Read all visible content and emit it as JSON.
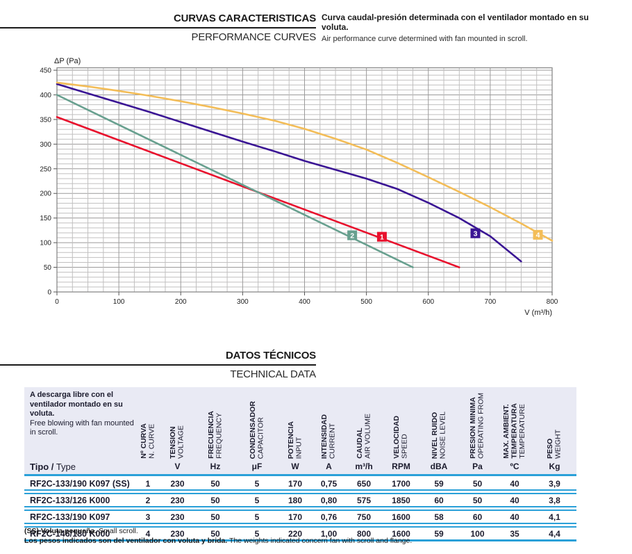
{
  "section1": {
    "title_es": "CURVAS CARACTERISTICAS",
    "title_en": "PERFORMANCE CURVES",
    "desc_es": "Curva caudal-presión determinada con el ventilador montado en su voluta.",
    "desc_en": "Air performance curve determined with fan mounted in scroll."
  },
  "section2": {
    "title_es": "DATOS TÉCNICOS",
    "title_en": "TECHNICAL DATA"
  },
  "chart_data": {
    "type": "line",
    "title": "",
    "xlabel": "V (m³/h)",
    "ylabel": "ΔP (Pa)",
    "xlim": [
      0,
      800
    ],
    "ylim": [
      0,
      455
    ],
    "x_major_step": 100,
    "x_minor_step": 25,
    "y_major_step": 50,
    "y_minor_step": 10,
    "grid": "on",
    "legend": "numbered square markers on curves",
    "series": [
      {
        "name": "1",
        "color": "#e8112d",
        "points": [
          [
            0,
            355
          ],
          [
            650,
            50
          ]
        ],
        "marker": {
          "x": 525,
          "y": 112,
          "label": "1"
        }
      },
      {
        "name": "2",
        "color": "#68a08f",
        "points": [
          [
            0,
            400
          ],
          [
            575,
            50
          ]
        ],
        "marker": {
          "x": 477,
          "y": 115,
          "label": "2"
        }
      },
      {
        "name": "3",
        "color": "#3a1594",
        "points": [
          [
            0,
            422
          ],
          [
            50,
            403
          ],
          [
            100,
            384
          ],
          [
            150,
            365
          ],
          [
            200,
            345
          ],
          [
            250,
            325
          ],
          [
            300,
            305
          ],
          [
            350,
            286
          ],
          [
            400,
            266
          ],
          [
            450,
            248
          ],
          [
            500,
            230
          ],
          [
            550,
            209
          ],
          [
            600,
            181
          ],
          [
            650,
            150
          ],
          [
            700,
            113
          ],
          [
            750,
            62
          ]
        ],
        "marker": {
          "x": 676,
          "y": 119,
          "label": "3"
        }
      },
      {
        "name": "4",
        "color": "#f3bd58",
        "points": [
          [
            0,
            425
          ],
          [
            50,
            417
          ],
          [
            100,
            408
          ],
          [
            150,
            398
          ],
          [
            200,
            387
          ],
          [
            250,
            375
          ],
          [
            300,
            362
          ],
          [
            350,
            348
          ],
          [
            400,
            331
          ],
          [
            450,
            311
          ],
          [
            500,
            289
          ],
          [
            550,
            262
          ],
          [
            600,
            233
          ],
          [
            650,
            203
          ],
          [
            700,
            172
          ],
          [
            750,
            139
          ],
          [
            800,
            104
          ]
        ],
        "marker": {
          "x": 777,
          "y": 116,
          "label": "4"
        }
      }
    ],
    "y_ticks": [
      0,
      50,
      100,
      150,
      200,
      250,
      300,
      350,
      400,
      450
    ],
    "x_ticks": [
      0,
      100,
      200,
      300,
      400,
      500,
      600,
      700,
      800
    ]
  },
  "table": {
    "intro_es": "A descarga libre con el ventilador montado en su voluta.",
    "intro_en": "Free blowing with fan mounted in scroll.",
    "type_label_bold": "Tipo /",
    "type_label_reg": " Type",
    "columns": [
      {
        "lines": [
          {
            "t": "Nº CURVA",
            "bold": true
          },
          {
            "t": "N. CURVE",
            "bold": false
          }
        ],
        "unit": ""
      },
      {
        "lines": [
          {
            "t": "TENSION",
            "bold": true
          },
          {
            "t": "VOLTAGE",
            "bold": false
          }
        ],
        "unit": "V"
      },
      {
        "lines": [
          {
            "t": "FRECUENCIA",
            "bold": true
          },
          {
            "t": "FREQUENCY",
            "bold": false
          }
        ],
        "unit": "Hz"
      },
      {
        "lines": [
          {
            "t": "CONDENSADOR",
            "bold": true
          },
          {
            "t": "CAPACITOR",
            "bold": false
          }
        ],
        "unit": "μF"
      },
      {
        "lines": [
          {
            "t": "POTENCIA",
            "bold": true
          },
          {
            "t": "INPUT",
            "bold": false
          }
        ],
        "unit": "W"
      },
      {
        "lines": [
          {
            "t": "INTENSIDAD",
            "bold": true
          },
          {
            "t": "CURRENT",
            "bold": false
          }
        ],
        "unit": "A"
      },
      {
        "lines": [
          {
            "t": "CAUDAL",
            "bold": true
          },
          {
            "t": "AIR VOLUME",
            "bold": false
          }
        ],
        "unit": "m³/h"
      },
      {
        "lines": [
          {
            "t": "VELOCIDAD",
            "bold": true
          },
          {
            "t": "SPEED",
            "bold": false
          }
        ],
        "unit": "RPM"
      },
      {
        "lines": [
          {
            "t": "NIVEL RUIDO",
            "bold": true
          },
          {
            "t": "NOISE LEVEL",
            "bold": false
          }
        ],
        "unit": "dBA"
      },
      {
        "lines": [
          {
            "t": "PRESION MINIMA",
            "bold": true
          },
          {
            "t": "OPERATING FROM",
            "bold": false
          }
        ],
        "unit": "Pa"
      },
      {
        "lines": [
          {
            "t": "MAX. AMBIENT.",
            "bold": true
          },
          {
            "t": "TEMPERATURA",
            "bold": true
          },
          {
            "t": "TEMPERATURE",
            "bold": false
          }
        ],
        "unit": "ºC"
      },
      {
        "lines": [
          {
            "t": "PESO",
            "bold": true
          },
          {
            "t": "WEIGHT",
            "bold": false
          }
        ],
        "unit": "Kg"
      }
    ],
    "rows": [
      {
        "type": "RF2C-133/190 K097 (SS)",
        "values": [
          "1",
          "230",
          "50",
          "5",
          "170",
          "0,75",
          "650",
          "1700",
          "59",
          "50",
          "40",
          "3,9"
        ]
      },
      {
        "type": "RF2C-133/126 K000",
        "values": [
          "2",
          "230",
          "50",
          "5",
          "180",
          "0,80",
          "575",
          "1850",
          "60",
          "50",
          "40",
          "3,8"
        ]
      },
      {
        "type": "RF2C-133/190 K097",
        "values": [
          "3",
          "230",
          "50",
          "5",
          "170",
          "0,76",
          "750",
          "1600",
          "58",
          "60",
          "40",
          "4,1"
        ]
      },
      {
        "type": "RF2C-146/180 K000",
        "values": [
          "4",
          "230",
          "50",
          "5",
          "220",
          "1,00",
          "800",
          "1600",
          "59",
          "100",
          "35",
          "4,4"
        ]
      }
    ],
    "footnotes": [
      {
        "bold": "(SS) Voluta pequeña.",
        "regular": " Small scroll."
      },
      {
        "bold": "Los pesos indicados son del ventilador con voluta y brida.",
        "regular": " The weights indicated concern fan with scroll and flange."
      }
    ]
  },
  "colors": {
    "table_line_blue": "#2aa0d8",
    "table_header_bg": "#e9eaf4",
    "grid_minor": "#c0bfbf",
    "grid_major": "#9b9a9a",
    "plot_border": "#8a8a8a",
    "curve_red": "#e8112d",
    "curve_green": "#68a08f",
    "curve_purple": "#3a1594",
    "curve_orange": "#f3bd58",
    "text": "#1c1c2e"
  }
}
